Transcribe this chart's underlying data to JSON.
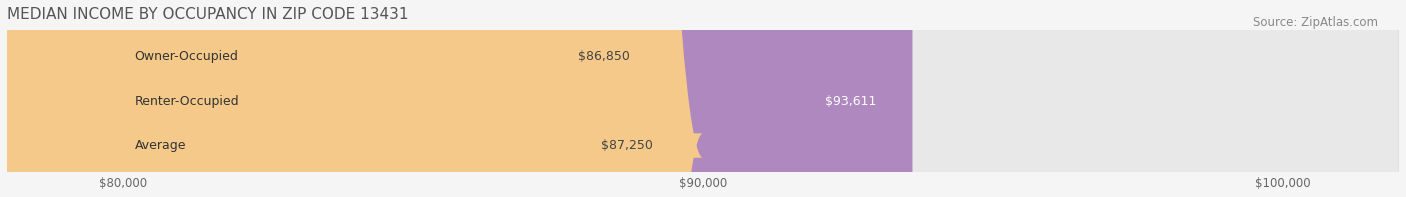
{
  "title": "MEDIAN INCOME BY OCCUPANCY IN ZIP CODE 13431",
  "source": "Source: ZipAtlas.com",
  "categories": [
    "Owner-Occupied",
    "Renter-Occupied",
    "Average"
  ],
  "values": [
    86850,
    93611,
    87250
  ],
  "bar_colors": [
    "#5ecfcf",
    "#b088c0",
    "#f5c98a"
  ],
  "bar_bg_color": "#e8e8e8",
  "labels": [
    "$86,850",
    "$93,611",
    "$87,250"
  ],
  "label_colors": [
    "#555555",
    "#ffffff",
    "#555555"
  ],
  "x_min": 78000,
  "x_max": 102000,
  "x_ticks": [
    80000,
    90000,
    100000
  ],
  "x_tick_labels": [
    "$80,000",
    "$90,000",
    "$100,000"
  ],
  "background_color": "#f5f5f5",
  "title_fontsize": 11,
  "source_fontsize": 8.5,
  "bar_label_fontsize": 9,
  "category_fontsize": 9
}
